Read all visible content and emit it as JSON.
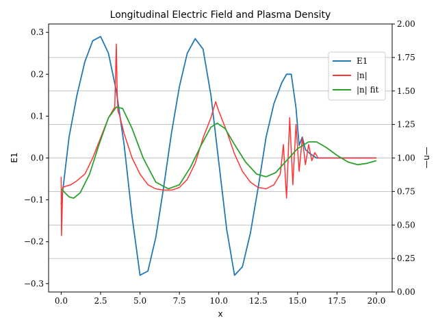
{
  "chart_data": {
    "type": "line",
    "title": "Longitudinal Electric Field and Plasma Density",
    "xlabel": "x",
    "ylabel": "E1",
    "ylabel_right": "—n—",
    "xlim": [
      -0.8,
      21.0
    ],
    "ylim_left": [
      -0.32,
      0.32
    ],
    "ylim_right": [
      0.0,
      2.0
    ],
    "x_ticks": [
      0.0,
      2.5,
      5.0,
      7.5,
      10.0,
      12.5,
      15.0,
      17.5,
      20.0
    ],
    "x_tick_labels": [
      "0.0",
      "2.5",
      "5.0",
      "7.5",
      "10.0",
      "12.5",
      "15.0",
      "17.5",
      "20.0"
    ],
    "y_left_ticks": [
      -0.3,
      -0.2,
      -0.1,
      0.0,
      0.1,
      0.2,
      0.3
    ],
    "y_left_tick_labels": [
      "−0.3",
      "−0.2",
      "−0.1",
      "0.0",
      "0.1",
      "0.2",
      "0.3"
    ],
    "y_right_ticks": [
      0.0,
      0.25,
      0.5,
      0.75,
      1.0,
      1.25,
      1.5,
      1.75,
      2.0
    ],
    "y_right_tick_labels": [
      "0.00",
      "0.25",
      "0.50",
      "0.75",
      "1.00",
      "1.25",
      "1.50",
      "1.75",
      "2.00"
    ],
    "grid": "horizontal lines at right-axis ticks",
    "legend_position": "upper-right",
    "series": [
      {
        "name": "E1",
        "axis": "left",
        "color": "#1f77b4",
        "x": [
          0.0,
          0.5,
          1.0,
          1.5,
          2.0,
          2.5,
          3.0,
          3.5,
          4.0,
          4.5,
          5.0,
          5.5,
          6.0,
          6.5,
          7.0,
          7.5,
          8.0,
          8.5,
          9.0,
          9.5,
          10.0,
          10.5,
          11.0,
          11.5,
          12.0,
          12.5,
          13.0,
          13.5,
          14.0,
          14.3,
          14.6,
          14.9,
          15.1,
          15.3,
          15.5,
          15.8,
          16.0,
          16.2,
          16.4,
          17.0,
          18.0,
          19.0,
          20.0
        ],
        "y": [
          -0.11,
          0.05,
          0.15,
          0.23,
          0.28,
          0.29,
          0.25,
          0.16,
          0.03,
          -0.14,
          -0.28,
          -0.27,
          -0.19,
          -0.07,
          0.06,
          0.17,
          0.25,
          0.285,
          0.26,
          0.15,
          -0.01,
          -0.17,
          -0.28,
          -0.26,
          -0.18,
          -0.07,
          0.05,
          0.13,
          0.18,
          0.2,
          0.2,
          0.12,
          0.03,
          0.05,
          0.02,
          0.01,
          0.005,
          0.0,
          0.0,
          0.0,
          0.0,
          0.0,
          0.0
        ]
      },
      {
        "name": "|n|",
        "axis": "right",
        "color": "#ff3333",
        "x": [
          0.0,
          0.02,
          0.1,
          0.3,
          0.6,
          1.0,
          1.5,
          2.0,
          2.5,
          3.0,
          3.4,
          3.5,
          3.55,
          3.6,
          3.7,
          4.0,
          4.5,
          5.0,
          5.5,
          6.0,
          6.5,
          7.0,
          7.5,
          8.0,
          8.5,
          9.0,
          9.5,
          9.8,
          10.0,
          10.5,
          11.0,
          11.5,
          12.0,
          12.5,
          13.0,
          13.5,
          13.9,
          14.1,
          14.3,
          14.5,
          14.7,
          14.9,
          15.1,
          15.3,
          15.5,
          15.7,
          15.9,
          16.1,
          16.3,
          16.5,
          17.0,
          18.0,
          19.0,
          20.0
        ],
        "y": [
          0.86,
          0.42,
          0.78,
          0.79,
          0.8,
          0.83,
          0.88,
          1.0,
          1.15,
          1.3,
          1.38,
          1.85,
          1.5,
          1.35,
          1.32,
          1.18,
          1.0,
          0.88,
          0.8,
          0.77,
          0.76,
          0.76,
          0.78,
          0.84,
          0.96,
          1.15,
          1.3,
          1.42,
          1.35,
          1.2,
          1.03,
          0.9,
          0.82,
          0.78,
          0.77,
          0.8,
          0.88,
          1.1,
          0.7,
          1.3,
          0.8,
          1.25,
          0.9,
          1.15,
          0.95,
          1.1,
          0.98,
          1.04,
          1.0,
          1.0,
          1.0,
          1.0,
          1.0,
          1.0
        ]
      },
      {
        "name": "|n| fit",
        "axis": "right",
        "color": "#2ca02c",
        "x": [
          0.0,
          0.5,
          0.8,
          1.2,
          1.8,
          2.4,
          3.0,
          3.5,
          3.9,
          4.5,
          5.2,
          6.0,
          6.8,
          7.5,
          8.2,
          8.9,
          9.5,
          9.9,
          10.4,
          11.0,
          11.7,
          12.4,
          13.0,
          13.6,
          14.3,
          15.0,
          15.7,
          16.2,
          16.8,
          17.5,
          18.2,
          18.8,
          19.4,
          20.0
        ],
        "y": [
          0.77,
          0.71,
          0.7,
          0.74,
          0.88,
          1.1,
          1.3,
          1.38,
          1.37,
          1.22,
          1.0,
          0.82,
          0.77,
          0.8,
          0.93,
          1.1,
          1.23,
          1.26,
          1.22,
          1.1,
          0.97,
          0.88,
          0.86,
          0.89,
          0.98,
          1.07,
          1.12,
          1.12,
          1.08,
          1.02,
          0.97,
          0.95,
          0.96,
          0.98
        ]
      }
    ]
  }
}
